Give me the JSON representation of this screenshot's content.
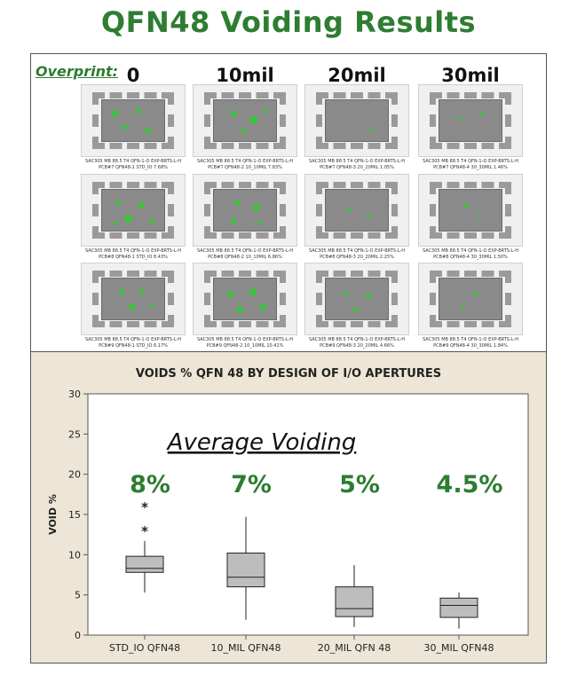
{
  "title": "QFN48 Voiding Results",
  "overprint_label": "Overprint:",
  "columns": [
    "0",
    "10mil",
    "20mil",
    "30mil"
  ],
  "thumbnails": [
    [
      {
        "line1": "SAC305 MB 88.5 T4 QFN-1-O EXP-BRTS-L-H",
        "line2": "PCB#7 QFN48-1 STD_IO 7.68%",
        "voids": [
          [
            0.2,
            0.3,
            0.1
          ],
          [
            0.55,
            0.25,
            0.08
          ],
          [
            0.35,
            0.6,
            0.07
          ],
          [
            0.7,
            0.7,
            0.09
          ]
        ]
      },
      {
        "line1": "SAC305 MB 88.5 T4 QFN-1-O EXP-BRTS-L-H",
        "line2": "PCB#7 QFN48-2 10_10MIL 7.83%",
        "voids": [
          [
            0.3,
            0.3,
            0.09
          ],
          [
            0.6,
            0.45,
            0.12
          ],
          [
            0.45,
            0.7,
            0.07
          ],
          [
            0.8,
            0.25,
            0.06
          ]
        ]
      },
      {
        "line1": "SAC305 MB 88.5 T4 QFN-1-O EXP-BRTS-L-H",
        "line2": "PCB#7 QFN48-3 20_20MIL 1.05%",
        "voids": [
          [
            0.4,
            0.35,
            0.05
          ],
          [
            0.7,
            0.65,
            0.04
          ]
        ]
      },
      {
        "line1": "SAC305 MB 88.5 T4 QFN-1-O EXP-BRTS-L-H",
        "line2": "PCB#7 QFN48-4 30_30MIL 1.46%",
        "voids": [
          [
            0.3,
            0.4,
            0.06
          ],
          [
            0.65,
            0.3,
            0.05
          ],
          [
            0.5,
            0.75,
            0.04
          ]
        ]
      }
    ],
    [
      {
        "line1": "SAC305 MB 88.5 T4 QFN-1-O EXP-BRTS-L-H",
        "line2": "PCB#8 QFN48-1 STD_IO 8.43%",
        "voids": [
          [
            0.25,
            0.3,
            0.08
          ],
          [
            0.6,
            0.35,
            0.1
          ],
          [
            0.4,
            0.65,
            0.12
          ],
          [
            0.75,
            0.7,
            0.07
          ],
          [
            0.2,
            0.75,
            0.06
          ]
        ]
      },
      {
        "line1": "SAC305 MB 88.5 T4 QFN-1-O EXP-BRTS-L-H",
        "line2": "PCB#8 QFN48-2 10_10MIL 6.86%",
        "voids": [
          [
            0.35,
            0.3,
            0.09
          ],
          [
            0.65,
            0.4,
            0.1
          ],
          [
            0.3,
            0.7,
            0.08
          ],
          [
            0.7,
            0.75,
            0.06
          ]
        ]
      },
      {
        "line1": "SAC305 MB 88.5 T4 QFN-1-O EXP-BRTS-L-H",
        "line2": "PCB#8 QFN48-3 20_20MIL 2.25%",
        "voids": [
          [
            0.35,
            0.45,
            0.06
          ],
          [
            0.65,
            0.6,
            0.05
          ]
        ]
      },
      {
        "line1": "SAC305 MB 88.5 T4 QFN-1-O EXP-BRTS-L-H",
        "line2": "PCB#8 QFN48-4 30_30MIL 1.50%",
        "voids": [
          [
            0.4,
            0.35,
            0.06
          ],
          [
            0.6,
            0.65,
            0.05
          ]
        ]
      }
    ],
    [
      {
        "line1": "SAC305 MB 88.5 T4 QFN-1-O EXP-BRTS-L-H",
        "line2": "PCB#9 QFN48-1 STD_IO 6.17%",
        "voids": [
          [
            0.3,
            0.3,
            0.08
          ],
          [
            0.6,
            0.3,
            0.07
          ],
          [
            0.45,
            0.65,
            0.09
          ],
          [
            0.75,
            0.6,
            0.06
          ]
        ]
      },
      {
        "line1": "SAC305 MB 88.5 T4 QFN-1-O EXP-BRTS-L-H",
        "line2": "PCB#9 QFN48-2 10_10MIL 10.41%",
        "voids": [
          [
            0.25,
            0.35,
            0.1
          ],
          [
            0.6,
            0.3,
            0.11
          ],
          [
            0.4,
            0.7,
            0.1
          ],
          [
            0.75,
            0.65,
            0.09
          ]
        ]
      },
      {
        "line1": "SAC305 MB 88.5 T4 QFN-1-O EXP-BRTS-L-H",
        "line2": "PCB#9 QFN48-3 20_20MIL 4.66%",
        "voids": [
          [
            0.3,
            0.35,
            0.07
          ],
          [
            0.65,
            0.4,
            0.08
          ],
          [
            0.45,
            0.7,
            0.07
          ]
        ]
      },
      {
        "line1": "SAC305 MB 88.5 T4 QFN-1-O EXP-BRTS-L-H",
        "line2": "PCB#9 QFN48-4 30_30MIL 1.84%",
        "voids": [
          [
            0.55,
            0.35,
            0.07
          ],
          [
            0.35,
            0.65,
            0.05
          ]
        ]
      }
    ]
  ],
  "colors": {
    "title_green": "#2e7d32",
    "void_green": "#3cc43c",
    "panel_bg": "#ede6d6",
    "box_fill": "#bdbdbd"
  },
  "chart_data": {
    "type": "box",
    "title": "VOIDS % QFN 48  BY DESIGN OF  I/O APERTURES",
    "ylabel": "VOID %",
    "ylim": [
      0,
      30
    ],
    "yticks": [
      0,
      5,
      10,
      15,
      20,
      25,
      30
    ],
    "annotation_title": "Average Voiding",
    "categories": [
      "STD_IO QFN48",
      "10_MIL QFN48",
      "20_MIL QFN 48",
      "30_MIL QFN48"
    ],
    "averages": [
      "8%",
      "7%",
      "5%",
      "4.5%"
    ],
    "boxes": [
      {
        "whisker_low": 5.3,
        "q1": 7.8,
        "median": 8.3,
        "q3": 9.8,
        "whisker_high": 11.7,
        "outliers": [
          13.0,
          16.0
        ]
      },
      {
        "whisker_low": 1.9,
        "q1": 6.0,
        "median": 7.2,
        "q3": 10.2,
        "whisker_high": 14.7,
        "outliers": []
      },
      {
        "whisker_low": 1.0,
        "q1": 2.3,
        "median": 3.3,
        "q3": 6.0,
        "whisker_high": 8.7,
        "outliers": []
      },
      {
        "whisker_low": 0.8,
        "q1": 2.2,
        "median": 3.7,
        "q3": 4.6,
        "whisker_high": 5.3,
        "outliers": []
      }
    ]
  }
}
